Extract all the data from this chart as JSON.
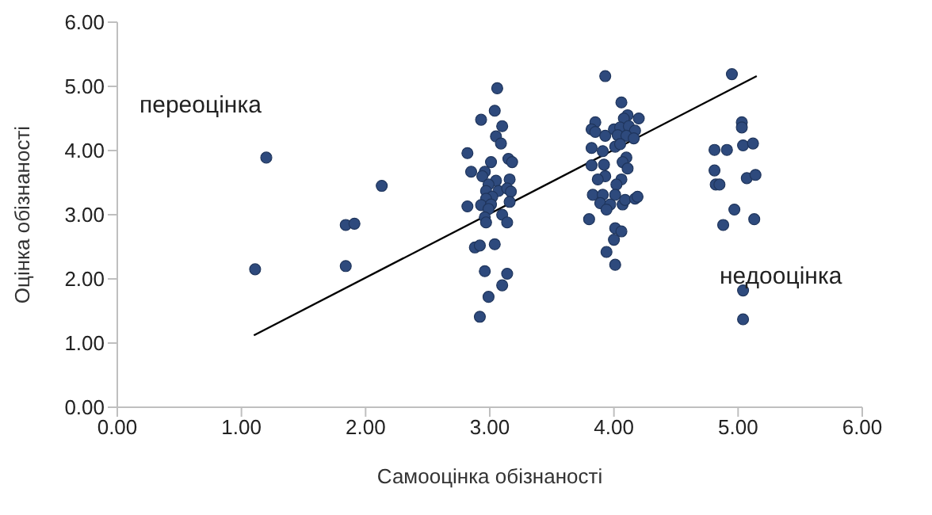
{
  "chart_data": {
    "type": "scatter",
    "xlabel": "Самооцінка обізнаності",
    "ylabel": "Оцінка обізнаності",
    "xlim": [
      0,
      6
    ],
    "ylim": [
      0,
      6
    ],
    "xticks": [
      {
        "value": 0,
        "label": "0.00"
      },
      {
        "value": 1,
        "label": "1.00"
      },
      {
        "value": 2,
        "label": "2.00"
      },
      {
        "value": 3,
        "label": "3.00"
      },
      {
        "value": 4,
        "label": "4.00"
      },
      {
        "value": 5,
        "label": "5.00"
      },
      {
        "value": 6,
        "label": "6.00"
      }
    ],
    "yticks": [
      {
        "value": 0,
        "label": "0.00"
      },
      {
        "value": 1,
        "label": "1.00"
      },
      {
        "value": 2,
        "label": "2.00"
      },
      {
        "value": 3,
        "label": "3.00"
      },
      {
        "value": 4,
        "label": "4.00"
      },
      {
        "value": 5,
        "label": "5.00"
      },
      {
        "value": 6,
        "label": "6.00"
      }
    ],
    "grid": false,
    "marker": "circle",
    "annotations": [
      "переоцінка",
      "недооцінка"
    ],
    "series": [
      {
        "color": "#2e4a7d",
        "x": [
          1.2,
          1.11,
          2.13,
          1.84,
          1.91,
          1.84,
          3.06,
          3.04,
          2.93,
          3.1,
          3.05,
          3.09,
          2.82,
          3.15,
          3.18,
          3.01,
          2.85,
          2.96,
          2.94,
          3.05,
          3.16,
          2.99,
          2.97,
          3.07,
          3.14,
          3.17,
          3.02,
          2.97,
          3.16,
          2.82,
          2.93,
          3.01,
          2.99,
          2.96,
          2.97,
          3.1,
          3.14,
          2.88,
          2.92,
          3.04,
          2.96,
          3.14,
          3.1,
          2.99,
          2.92,
          3.93,
          4.06,
          4.11,
          4.2,
          4.08,
          3.85,
          3.82,
          3.85,
          4.0,
          4.05,
          4.12,
          4.17,
          3.93,
          4.03,
          4.1,
          4.16,
          3.82,
          3.91,
          4.01,
          4.05,
          4.1,
          4.07,
          3.82,
          3.92,
          4.11,
          3.93,
          3.87,
          4.06,
          4.02,
          3.83,
          3.91,
          4.01,
          3.89,
          3.97,
          3.94,
          4.07,
          4.09,
          4.17,
          4.19,
          3.8,
          4.01,
          4.06,
          4.0,
          3.94,
          4.01,
          4.95,
          5.03,
          5.03,
          4.81,
          4.91,
          5.04,
          5.12,
          4.81,
          4.82,
          4.85,
          5.07,
          5.14,
          4.97,
          4.88,
          5.13,
          5.04,
          5.04
        ],
        "values": [
          3.89,
          2.15,
          3.45,
          2.84,
          2.86,
          2.2,
          4.97,
          4.62,
          4.48,
          4.38,
          4.22,
          4.11,
          3.96,
          3.87,
          3.82,
          3.82,
          3.67,
          3.67,
          3.6,
          3.53,
          3.55,
          3.47,
          3.37,
          3.37,
          3.41,
          3.36,
          3.28,
          3.25,
          3.2,
          3.13,
          3.15,
          3.16,
          3.09,
          2.96,
          2.88,
          3.0,
          2.88,
          2.49,
          2.52,
          2.54,
          2.12,
          2.08,
          1.9,
          1.72,
          1.41,
          5.16,
          4.75,
          4.55,
          4.5,
          4.5,
          4.44,
          4.33,
          4.29,
          4.33,
          4.36,
          4.38,
          4.31,
          4.23,
          4.24,
          4.23,
          4.19,
          4.04,
          3.99,
          4.06,
          4.1,
          3.89,
          3.82,
          3.77,
          3.78,
          3.72,
          3.6,
          3.55,
          3.55,
          3.47,
          3.31,
          3.31,
          3.31,
          3.18,
          3.16,
          3.08,
          3.16,
          3.23,
          3.25,
          3.28,
          2.93,
          2.79,
          2.74,
          2.61,
          2.42,
          2.22,
          5.19,
          4.44,
          4.36,
          4.01,
          4.01,
          4.08,
          4.11,
          3.69,
          3.47,
          3.47,
          3.57,
          3.62,
          3.08,
          2.84,
          2.93,
          1.82,
          1.37
        ]
      },
      {
        "type": "line",
        "color": "#000000",
        "marker": "none",
        "x": [
          1.1,
          5.15
        ],
        "values": [
          1.12,
          5.16
        ]
      }
    ]
  }
}
